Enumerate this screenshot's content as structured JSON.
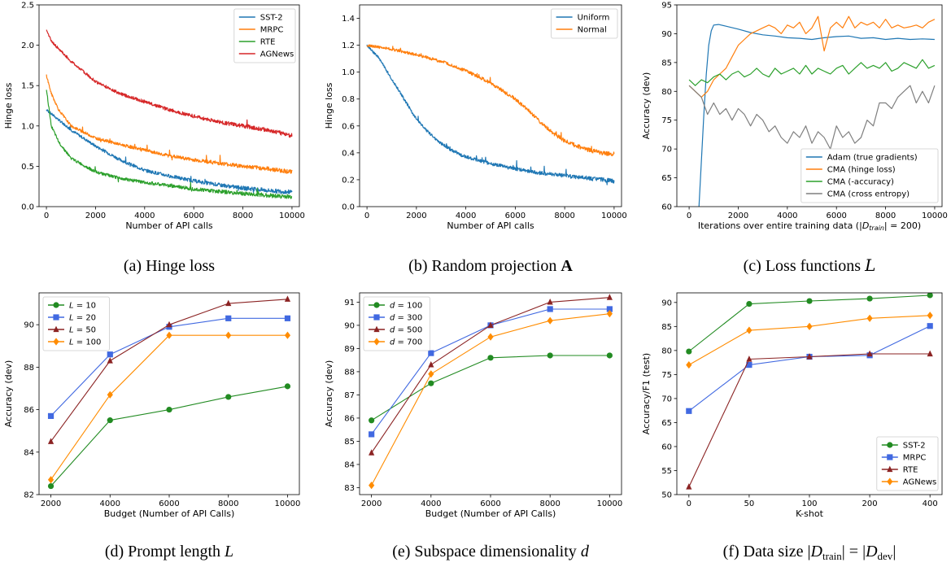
{
  "colors": {
    "blue": "#1f77b4",
    "orange": "#ff7f0e",
    "green": "#2ca02c",
    "red": "#d62728",
    "gray": "#7f7f7f",
    "g2": "#228B22",
    "b2": "#4169E1",
    "r2": "#8B2323",
    "o2": "#FF8C00"
  },
  "chart_data": [
    {
      "id": "a",
      "type": "line",
      "caption": "(a) Hinge loss",
      "xlabel": "Number of API calls",
      "ylabel": "Hinge loss",
      "xlim": [
        -300,
        10300
      ],
      "ylim": [
        0,
        2.5
      ],
      "xticks": [
        0,
        2000,
        4000,
        6000,
        8000,
        10000
      ],
      "yticks": [
        0.0,
        0.5,
        1.0,
        1.5,
        2.0,
        2.5
      ],
      "ytick_decimals": 1,
      "legend": "top-right",
      "noise": true,
      "series": [
        {
          "name": "SST-2",
          "color": "blue",
          "x": [
            0,
            200,
            1000,
            2000,
            3000,
            4000,
            5000,
            6000,
            7000,
            8000,
            9000,
            10000
          ],
          "y": [
            1.2,
            1.15,
            0.95,
            0.75,
            0.58,
            0.45,
            0.38,
            0.32,
            0.27,
            0.23,
            0.2,
            0.18
          ]
        },
        {
          "name": "MRPC",
          "color": "orange",
          "x": [
            0,
            200,
            500,
            1000,
            2000,
            3000,
            4000,
            5000,
            6000,
            7000,
            8000,
            9000,
            10000
          ],
          "y": [
            1.63,
            1.4,
            1.2,
            1.0,
            0.85,
            0.77,
            0.7,
            0.63,
            0.58,
            0.54,
            0.5,
            0.47,
            0.43
          ]
        },
        {
          "name": "RTE",
          "color": "green",
          "x": [
            0,
            200,
            500,
            1000,
            2000,
            3000,
            4000,
            5000,
            6000,
            7000,
            8000,
            9000,
            10000
          ],
          "y": [
            1.45,
            1.0,
            0.8,
            0.6,
            0.43,
            0.35,
            0.3,
            0.26,
            0.22,
            0.19,
            0.16,
            0.14,
            0.12
          ]
        },
        {
          "name": "AGNews",
          "color": "red",
          "x": [
            0,
            200,
            1000,
            2000,
            3000,
            4000,
            5000,
            6000,
            7000,
            8000,
            9000,
            10000
          ],
          "y": [
            2.2,
            2.05,
            1.8,
            1.55,
            1.4,
            1.3,
            1.2,
            1.12,
            1.05,
            1.0,
            0.95,
            0.88
          ]
        }
      ]
    },
    {
      "id": "b",
      "type": "line",
      "caption": "(b) Random projection ",
      "caption_bold": "A",
      "xlabel": "Number of API calls",
      "ylabel": "Hinge loss",
      "xlim": [
        -300,
        10300
      ],
      "ylim": [
        0,
        1.5
      ],
      "xticks": [
        0,
        2000,
        4000,
        6000,
        8000,
        10000
      ],
      "yticks": [
        0.0,
        0.2,
        0.4,
        0.6,
        0.8,
        1.0,
        1.2,
        1.4
      ],
      "ytick_decimals": 1,
      "legend": "top-right",
      "noise": true,
      "series": [
        {
          "name": "Uniform",
          "color": "blue",
          "x": [
            0,
            500,
            1000,
            1500,
            2000,
            2500,
            3000,
            3500,
            4000,
            5000,
            6000,
            7000,
            8000,
            9000,
            10000
          ],
          "y": [
            1.2,
            1.1,
            0.95,
            0.8,
            0.65,
            0.55,
            0.47,
            0.41,
            0.37,
            0.32,
            0.28,
            0.25,
            0.23,
            0.21,
            0.19
          ]
        },
        {
          "name": "Normal",
          "color": "orange",
          "x": [
            0,
            1000,
            2000,
            3000,
            4000,
            5000,
            6000,
            6500,
            7000,
            7500,
            8000,
            8500,
            9000,
            9500,
            10000
          ],
          "y": [
            1.2,
            1.17,
            1.13,
            1.08,
            1.01,
            0.92,
            0.8,
            0.72,
            0.63,
            0.55,
            0.49,
            0.45,
            0.42,
            0.4,
            0.39
          ]
        }
      ]
    },
    {
      "id": "c",
      "type": "line",
      "caption": "(c) Loss functions ",
      "caption_script": "L",
      "xlabel": "Iterations over entire training data (|",
      "xlabel_sym": "D",
      "xlabel_sub": "train",
      "xlabel_end": "| = 200)",
      "ylabel": "Accuracy (dev)",
      "xlim": [
        -500,
        10300
      ],
      "ylim": [
        60,
        95
      ],
      "xticks": [
        0,
        2000,
        4000,
        6000,
        8000,
        10000
      ],
      "yticks": [
        60,
        65,
        70,
        75,
        80,
        85,
        90,
        95
      ],
      "ytick_decimals": 0,
      "legend": "bottom-right",
      "noise": false,
      "series": [
        {
          "name": "Adam (true gradients)",
          "color": "blue",
          "x": [
            400,
            500,
            600,
            700,
            800,
            900,
            1000,
            1200,
            1500,
            2000,
            2500,
            3000,
            3500,
            4000,
            4500,
            5000,
            5500,
            6000,
            6500,
            7000,
            7500,
            8000,
            8500,
            9000,
            9500,
            10000
          ],
          "y": [
            60,
            68,
            76,
            83,
            88,
            90.5,
            91.5,
            91.6,
            91.3,
            90.8,
            90.2,
            89.8,
            89.6,
            89.3,
            89.2,
            89.0,
            89.3,
            89.5,
            89.6,
            89.2,
            89.3,
            89.0,
            89.2,
            89.0,
            89.1,
            89.0
          ]
        },
        {
          "name": "CMA (hinge loss)",
          "color": "orange",
          "x": [
            0,
            250,
            500,
            750,
            1000,
            1250,
            1500,
            1750,
            2000,
            2250,
            2500,
            2750,
            3000,
            3250,
            3500,
            3750,
            4000,
            4250,
            4500,
            4750,
            5000,
            5250,
            5500,
            5750,
            6000,
            6250,
            6500,
            6750,
            7000,
            7250,
            7500,
            7750,
            8000,
            8250,
            8500,
            8750,
            9000,
            9250,
            9500,
            9750,
            10000
          ],
          "y": [
            81,
            80,
            79,
            80,
            82,
            83,
            84,
            86,
            88,
            89,
            90,
            90.5,
            91,
            91.5,
            91,
            90,
            91.5,
            91,
            92,
            90,
            91,
            93,
            87,
            91,
            92,
            91,
            93,
            91,
            92,
            91.5,
            92,
            91,
            92.5,
            91,
            91.5,
            91,
            91.2,
            91.5,
            91,
            92,
            92.5
          ]
        },
        {
          "name": "CMA (-accuracy)",
          "color": "green",
          "x": [
            0,
            250,
            500,
            750,
            1000,
            1250,
            1500,
            1750,
            2000,
            2250,
            2500,
            2750,
            3000,
            3250,
            3500,
            3750,
            4000,
            4250,
            4500,
            4750,
            5000,
            5250,
            5500,
            5750,
            6000,
            6250,
            6500,
            6750,
            7000,
            7250,
            7500,
            7750,
            8000,
            8250,
            8500,
            8750,
            9000,
            9250,
            9500,
            9750,
            10000
          ],
          "y": [
            82,
            81,
            82,
            81.5,
            82.5,
            83,
            82,
            83,
            83.5,
            82.5,
            83,
            84,
            83,
            82.5,
            84,
            83,
            83.5,
            84,
            83,
            84.5,
            83,
            84,
            83.5,
            83,
            84,
            84.5,
            83,
            84,
            85,
            84,
            84.5,
            84,
            85,
            83.5,
            84,
            85,
            84.5,
            84,
            85.5,
            84,
            84.5
          ]
        },
        {
          "name": "CMA (cross entropy)",
          "color": "gray",
          "x": [
            0,
            250,
            500,
            750,
            1000,
            1250,
            1500,
            1750,
            2000,
            2250,
            2500,
            2750,
            3000,
            3250,
            3500,
            3750,
            4000,
            4250,
            4500,
            4750,
            5000,
            5250,
            5500,
            5750,
            6000,
            6250,
            6500,
            6750,
            7000,
            7250,
            7500,
            7750,
            8000,
            8250,
            8500,
            8750,
            9000,
            9250,
            9500,
            9750,
            10000
          ],
          "y": [
            81,
            80,
            79,
            76,
            78,
            76,
            77,
            75,
            77,
            76,
            74,
            76,
            75,
            73,
            74,
            72,
            71,
            73,
            72,
            74,
            71,
            73,
            72,
            70,
            74,
            72,
            73,
            71,
            72,
            75,
            74,
            78,
            78,
            77,
            79,
            80,
            81,
            78,
            80,
            78,
            81
          ]
        }
      ]
    },
    {
      "id": "d",
      "type": "line",
      "caption": "(d) Prompt length ",
      "caption_ital": "L",
      "xlabel": "Budget (Number of API Calls)",
      "ylabel": "Accuracy (dev)",
      "xlim": [
        1600,
        10400
      ],
      "ylim": [
        82,
        91.5
      ],
      "xticks": [
        2000,
        4000,
        6000,
        8000,
        10000
      ],
      "yticks": [
        82,
        84,
        86,
        88,
        90
      ],
      "ytick_decimals": 0,
      "legend": "top-left",
      "markers": true,
      "series": [
        {
          "name": "L = 10",
          "legend_sym": "L",
          "legend_val": " = 10",
          "color": "g2",
          "marker": "circle",
          "x": [
            2000,
            4000,
            6000,
            8000,
            10000
          ],
          "y": [
            82.4,
            85.5,
            86.0,
            86.6,
            87.1
          ]
        },
        {
          "name": "L = 20",
          "legend_sym": "L",
          "legend_val": " = 20",
          "color": "b2",
          "marker": "square",
          "x": [
            2000,
            4000,
            6000,
            8000,
            10000
          ],
          "y": [
            85.7,
            88.6,
            89.9,
            90.3,
            90.3
          ]
        },
        {
          "name": "L = 50",
          "legend_sym": "L",
          "legend_val": " = 50",
          "color": "r2",
          "marker": "triangle",
          "x": [
            2000,
            4000,
            6000,
            8000,
            10000
          ],
          "y": [
            84.5,
            88.3,
            90.0,
            91.0,
            91.2
          ]
        },
        {
          "name": "L = 100",
          "legend_sym": "L",
          "legend_val": " = 100",
          "color": "o2",
          "marker": "diamond",
          "x": [
            2000,
            4000,
            6000,
            8000,
            10000
          ],
          "y": [
            82.7,
            86.7,
            89.5,
            89.5,
            89.5
          ]
        }
      ]
    },
    {
      "id": "e",
      "type": "line",
      "caption": "(e) Subspace dimensionality ",
      "caption_ital": "d",
      "xlabel": "Budget (Number of API Calls)",
      "ylabel": "Accuracy (dev)",
      "xlim": [
        1600,
        10400
      ],
      "ylim": [
        82.7,
        91.4
      ],
      "xticks": [
        2000,
        4000,
        6000,
        8000,
        10000
      ],
      "yticks": [
        83,
        84,
        85,
        86,
        87,
        88,
        89,
        90,
        91
      ],
      "ytick_decimals": 0,
      "legend": "top-left",
      "markers": true,
      "series": [
        {
          "name": "d = 100",
          "legend_sym": "d",
          "legend_val": " = 100",
          "color": "g2",
          "marker": "circle",
          "x": [
            2000,
            4000,
            6000,
            8000,
            10000
          ],
          "y": [
            85.9,
            87.5,
            88.6,
            88.7,
            88.7
          ]
        },
        {
          "name": "d = 300",
          "legend_sym": "d",
          "legend_val": " = 300",
          "color": "b2",
          "marker": "square",
          "x": [
            2000,
            4000,
            6000,
            8000,
            10000
          ],
          "y": [
            85.3,
            88.8,
            90.0,
            90.7,
            90.7
          ]
        },
        {
          "name": "d = 500",
          "legend_sym": "d",
          "legend_val": " = 500",
          "color": "r2",
          "marker": "triangle",
          "x": [
            2000,
            4000,
            6000,
            8000,
            10000
          ],
          "y": [
            84.5,
            88.3,
            90.0,
            91.0,
            91.2
          ]
        },
        {
          "name": "d = 700",
          "legend_sym": "d",
          "legend_val": " = 700",
          "color": "o2",
          "marker": "diamond",
          "x": [
            2000,
            4000,
            6000,
            8000,
            10000
          ],
          "y": [
            83.1,
            87.9,
            89.5,
            90.2,
            90.5
          ]
        }
      ]
    },
    {
      "id": "f",
      "type": "line",
      "caption": "(f) Data size |",
      "caption_math": "D",
      "caption_sub": "train",
      "caption_mid": "| = |",
      "caption_sub2": "dev",
      "caption_end": "|",
      "xlabel": "K-shot",
      "ylabel": "Accuracy/F1 (test)",
      "xlim": [
        -0.2,
        4.2
      ],
      "ylim": [
        50,
        92
      ],
      "xticks": [
        0,
        1,
        2,
        3,
        4
      ],
      "xticklabels": [
        "0",
        "50",
        "100",
        "200",
        "400"
      ],
      "yticks": [
        50,
        55,
        60,
        65,
        70,
        75,
        80,
        85,
        90
      ],
      "ytick_decimals": 0,
      "legend": "bottom-right",
      "markers": true,
      "series": [
        {
          "name": "SST-2",
          "color": "g2",
          "marker": "circle",
          "x": [
            0,
            1,
            2,
            3,
            4
          ],
          "y": [
            79.8,
            89.7,
            90.3,
            90.8,
            91.5
          ]
        },
        {
          "name": "MRPC",
          "color": "b2",
          "marker": "square",
          "x": [
            0,
            1,
            2,
            3,
            4
          ],
          "y": [
            67.4,
            77.0,
            78.7,
            79.0,
            85.1
          ]
        },
        {
          "name": "RTE",
          "color": "r2",
          "marker": "triangle",
          "x": [
            0,
            1,
            2,
            3,
            4
          ],
          "y": [
            51.6,
            78.2,
            78.7,
            79.3,
            79.3
          ]
        },
        {
          "name": "AGNews",
          "color": "o2",
          "marker": "diamond",
          "x": [
            0,
            1,
            2,
            3,
            4
          ],
          "y": [
            77.0,
            84.2,
            85.0,
            86.7,
            87.3
          ]
        }
      ]
    }
  ]
}
